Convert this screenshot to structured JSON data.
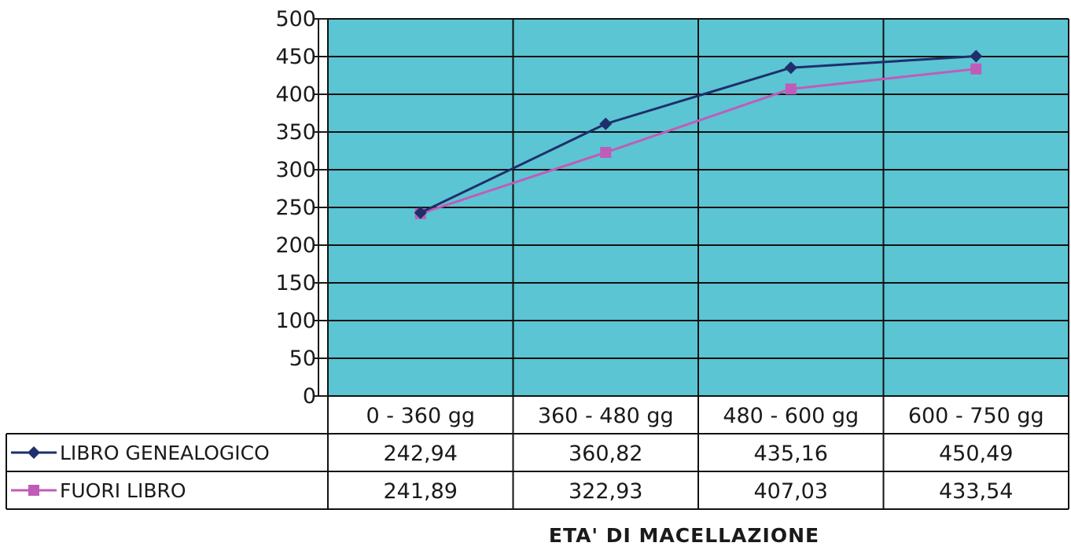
{
  "chart_data": {
    "type": "line",
    "categories": [
      "0 - 360 gg",
      "360 - 480 gg",
      "480 - 600 gg",
      "600 - 750 gg"
    ],
    "series": [
      {
        "name": "LIBRO GENEALOGICO",
        "values": [
          242.94,
          360.82,
          435.16,
          450.49
        ],
        "labels": [
          "242,94",
          "360,82",
          "435,16",
          "450,49"
        ],
        "color": "#1f2f6b",
        "marker": "diamond"
      },
      {
        "name": "FUORI LIBRO",
        "values": [
          241.89,
          322.93,
          407.03,
          433.54
        ],
        "labels": [
          "241,89",
          "322,93",
          "407,03",
          "433,54"
        ],
        "color": "#c05cb8",
        "marker": "square"
      }
    ],
    "xlabel": "ETA' DI MACELLAZIONE",
    "ylabel": "",
    "ylim": [
      0,
      500
    ],
    "yticks": [
      0,
      50,
      100,
      150,
      200,
      250,
      300,
      350,
      400,
      450,
      500
    ],
    "grid": true,
    "plot_background": "#5bc5d3",
    "legend": "data-table-left"
  }
}
